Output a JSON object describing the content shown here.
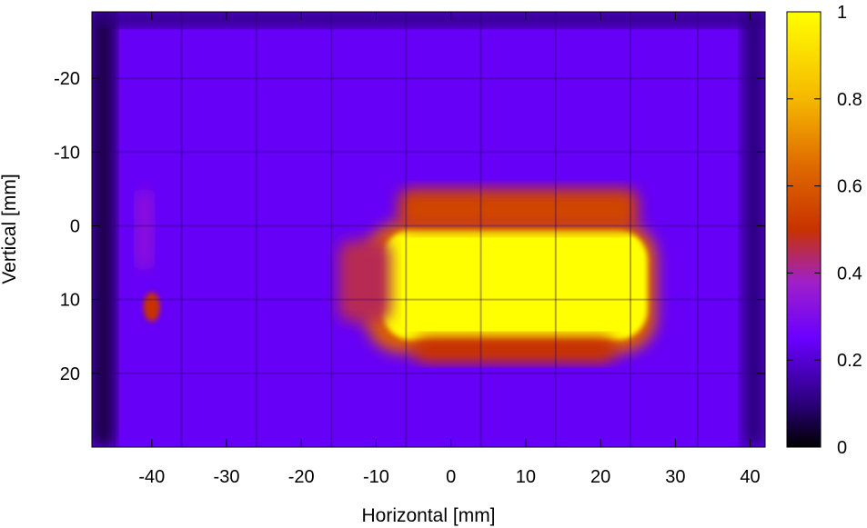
{
  "chart_data": {
    "type": "heatmap",
    "title": "",
    "xlabel": "Horizontal [mm]",
    "ylabel": "Vertical [mm]",
    "xlim": [
      -48,
      42
    ],
    "ylim": [
      -29,
      30
    ],
    "y_inverted": true,
    "x_ticks": [
      -40,
      -30,
      -20,
      -10,
      0,
      10,
      20,
      30,
      40
    ],
    "y_ticks": [
      -20,
      -10,
      0,
      10,
      20
    ],
    "colorbar": {
      "range": [
        0,
        1
      ],
      "ticks": [
        0,
        0.2,
        0.4,
        0.6,
        0.8,
        1
      ],
      "tick_labels": [
        "0",
        "0.2",
        "0.4",
        "0.6",
        "0.8",
        "1"
      ],
      "colormap": "black-purple-red-yellow",
      "colors": [
        "#000000",
        "#2a007a",
        "#6a00ff",
        "#a020c8",
        "#c83200",
        "#e06c00",
        "#f5b800",
        "#ffff00"
      ]
    },
    "grid_lines_x": [
      -45,
      -36,
      -26,
      -16,
      -6,
      4,
      14,
      24,
      33
    ],
    "grid_lines_y": [
      -20,
      -10,
      0,
      10,
      20
    ],
    "regions": [
      {
        "name": "background",
        "x_range": [
          -48,
          42
        ],
        "y_range": [
          -29,
          30
        ],
        "value": 0.24
      },
      {
        "name": "core-hot-spot",
        "x_range": [
          -10,
          27
        ],
        "y_range": [
          0.5,
          15.5
        ],
        "value": 1.0
      },
      {
        "name": "upper-halo",
        "x_range": [
          -7,
          25
        ],
        "y_range": [
          -5,
          0.5
        ],
        "value": 0.55
      },
      {
        "name": "lower-halo",
        "x_range": [
          -5,
          22
        ],
        "y_range": [
          15,
          18.5
        ],
        "value": 0.5
      },
      {
        "name": "left-halo",
        "x_range": [
          -15,
          -8
        ],
        "y_range": [
          2,
          13
        ],
        "value": 0.45
      },
      {
        "name": "left-spot",
        "x": -40,
        "y": 11,
        "value": 0.5
      },
      {
        "name": "left-streak",
        "x_range": [
          -42,
          -40
        ],
        "y_range": [
          -5,
          6
        ],
        "value": 0.35
      },
      {
        "name": "left-edge-dark",
        "x_range": [
          -48,
          -45
        ],
        "y_range": [
          -29,
          30
        ],
        "value": 0.05
      },
      {
        "name": "top-edge-dark",
        "x_range": [
          -48,
          42
        ],
        "y_range": [
          -29,
          -27
        ],
        "value": 0.1
      },
      {
        "name": "right-edge-dark",
        "x_range": [
          39,
          42
        ],
        "y_range": [
          -29,
          30
        ],
        "value": 0.1
      }
    ]
  }
}
